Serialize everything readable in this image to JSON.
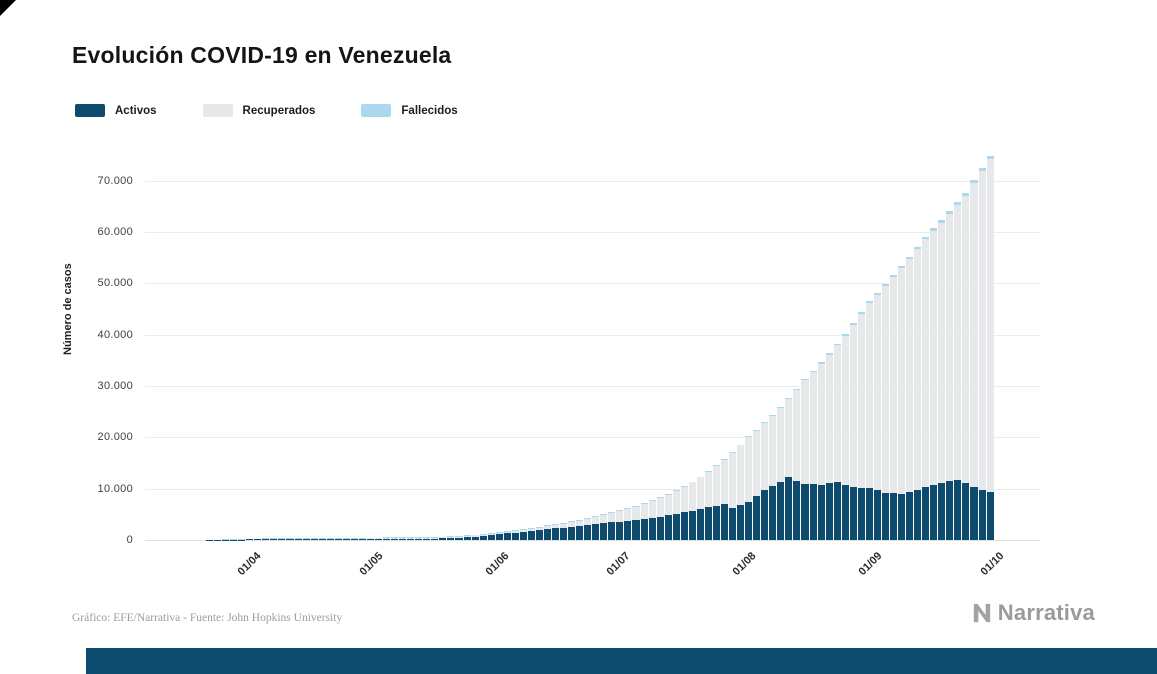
{
  "title": "Evolución COVID-19 en Venezuela",
  "legend": [
    {
      "label": "Activos",
      "color": "#0c4a6e"
    },
    {
      "label": "Recuperados",
      "color": "#e7e8e9"
    },
    {
      "label": "Fallecidos",
      "color": "#abd7ef"
    }
  ],
  "y_axis": {
    "title": "Número de casos",
    "ticks": [
      "0",
      "10.000",
      "20.000",
      "30.000",
      "40.000",
      "50.000",
      "60.000",
      "70.000"
    ]
  },
  "x_axis": {
    "ticks": [
      {
        "label": "01/04",
        "day": 12
      },
      {
        "label": "01/05",
        "day": 42
      },
      {
        "label": "01/06",
        "day": 73
      },
      {
        "label": "01/07",
        "day": 103
      },
      {
        "label": "01/08",
        "day": 134
      },
      {
        "label": "01/09",
        "day": 165
      },
      {
        "label": "01/10",
        "day": 195
      }
    ]
  },
  "footer": {
    "credit": "Gráfico: EFE/Narrativa - Fuente: John Hopkins University",
    "brand": "Narrativa"
  },
  "chart_data": {
    "type": "bar",
    "stacked": true,
    "title": "Evolución COVID-19 en Venezuela",
    "xlabel": "",
    "ylabel": "Número de casos",
    "ylim": [
      0,
      76000
    ],
    "grid": "horizontal",
    "legend_position": "top-left",
    "x_step_days": 2,
    "x_span_days": 194,
    "x_note": "daily stacked bars, approx. 20/03 to 01/10 (2-day sampling)",
    "series": [
      {
        "name": "Activos",
        "color": "#0c4a6e",
        "values": [
          40,
          50,
          60,
          72,
          86,
          102,
          120,
          125,
          130,
          134,
          138,
          142,
          146,
          150,
          156,
          162,
          168,
          175,
          181,
          187,
          193,
          200,
          207,
          214,
          221,
          228,
          235,
          243,
          250,
          300,
          360,
          430,
          520,
          635,
          770,
          945,
          1120,
          1290,
          1440,
          1600,
          1760,
          1930,
          2110,
          2270,
          2430,
          2590,
          2750,
          2930,
          3090,
          3260,
          3420,
          3560,
          3700,
          3900,
          4100,
          4300,
          4550,
          4800,
          5080,
          5400,
          5750,
          6100,
          6400,
          6700,
          7000,
          6300,
          6800,
          7500,
          8500,
          9800,
          10500,
          11400,
          12200,
          11500,
          11000,
          10900,
          10800,
          11100,
          11300,
          10800,
          10400,
          10200,
          10050,
          9800,
          9200,
          9100,
          9000,
          9400,
          9800,
          10300,
          10800,
          11200,
          11500,
          11700,
          11200,
          10400,
          9800,
          9400
        ]
      },
      {
        "name": "Recuperados",
        "color": "#e7e8e9",
        "values": [
          2,
          2,
          2,
          4,
          7,
          13,
          20,
          22,
          24,
          28,
          32,
          37,
          42,
          48,
          55,
          64,
          73,
          83,
          94,
          107,
          120,
          135,
          142,
          149,
          158,
          167,
          176,
          186,
          197,
          216,
          234,
          255,
          270,
          275,
          278,
          281,
          286,
          335,
          357,
          386,
          437,
          499,
          577,
          702,
          788,
          898,
          1032,
          1170,
          1356,
          1560,
          1807,
          2107,
          2315,
          2593,
          2909,
          3268,
          3622,
          4024,
          4450,
          4934,
          5474,
          6091,
          6842,
          7684,
          8625,
          10674,
          11639,
          12532,
          12831,
          12916,
          13692,
          14364,
          15240,
          17725,
          20109,
          21786,
          23544,
          24986,
          26618,
          29043,
          31467,
          33794,
          36179,
          38023,
          40271,
          42076,
          43940,
          45367,
          46856,
          48311,
          49409,
          50651,
          52038,
          53572,
          55853,
          59111,
          62095,
          64880
        ]
      },
      {
        "name": "Fallecidos",
        "color": "#abd7ef",
        "values": [
          0,
          0,
          1,
          1,
          2,
          2,
          3,
          3,
          4,
          4,
          5,
          5,
          6,
          6,
          7,
          7,
          8,
          8,
          9,
          9,
          10,
          10,
          10,
          11,
          11,
          11,
          12,
          12,
          12,
          12,
          13,
          13,
          13,
          13,
          14,
          14,
          14,
          15,
          17,
          20,
          22,
          25,
          27,
          30,
          32,
          35,
          37,
          40,
          42,
          45,
          47,
          50,
          55,
          63,
          71,
          79,
          87,
          95,
          103,
          111,
          119,
          127,
          135,
          143,
          151,
          159,
          167,
          174,
          188,
          202,
          216,
          230,
          244,
          258,
          272,
          286,
          300,
          314,
          328,
          342,
          356,
          370,
          384,
          399,
          415,
          431,
          447,
          462,
          478,
          494,
          510,
          526,
          542,
          557,
          573,
          589,
          605,
          620
        ]
      }
    ]
  }
}
